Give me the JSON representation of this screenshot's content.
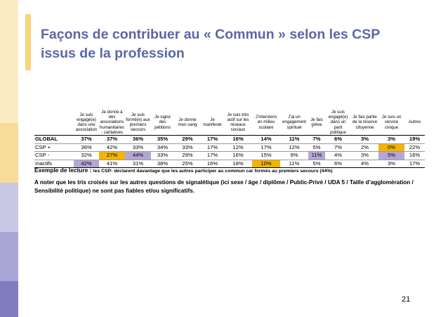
{
  "title": "Façons de contribuer au « Commun » selon les CSP issus de la profession",
  "table": {
    "headers": [
      "",
      "Je suis engagé(e) dans une association",
      "Je donne à des associations humanitaires - caritatives",
      "Je suis formé(e) aux premiers secours",
      "Je signe des pétitions",
      "Je donne mon sang",
      "Je manifeste",
      "Je suis très actif sur les réseaux sociaux",
      "J’interviens en milieu scolaire",
      "J’ai un engagement spirituel",
      "Je fais grève",
      "Je suis engagé(e) dans un parti politique",
      "Je fais partie de la réserve citoyenne",
      "Je suis un service civique",
      "Autres"
    ],
    "rows": [
      {
        "label": "GLOBAL",
        "values": [
          "37%",
          "37%",
          "36%",
          "35%",
          "29%",
          "17%",
          "16%",
          "14%",
          "11%",
          "7%",
          "6%",
          "3%",
          "3%",
          "19%"
        ]
      },
      {
        "label": "CSP +",
        "values": [
          "36%",
          "42%",
          "33%",
          "34%",
          "33%",
          "17%",
          "12%",
          "17%",
          "12%",
          "5%",
          "7%",
          "2%",
          "0%",
          "22%"
        ]
      },
      {
        "label": "CSP -",
        "values": [
          "32%",
          "27%",
          "44%",
          "33%",
          "29%",
          "17%",
          "16%",
          "15%",
          "9%",
          "11%",
          "4%",
          "3%",
          "5%",
          "16%"
        ]
      },
      {
        "label": "Inactifs",
        "values": [
          "42%",
          "41%",
          "31%",
          "38%",
          "25%",
          "16%",
          "18%",
          "10%",
          "11%",
          "5%",
          "6%",
          "4%",
          "3%",
          "17%"
        ]
      }
    ],
    "highlight_colors": {
      "orange": "#F4B400",
      "purple": "#B4A7D6"
    }
  },
  "reading": {
    "prefix": "Exemple de lecture :",
    "text": "les CSP- déclarent davantage que les autres participer au commun car formés au premiers secours (44%)"
  },
  "note": "A noter que les tris croisés sur les autres questions de signalétique (ici sexe / âge / diplôme / Public-Privé / UDA 5 / Taille d’agglomération / Sensibilité politique) ne sont pas fiables et/ou significatifs.",
  "page_number": "21"
}
